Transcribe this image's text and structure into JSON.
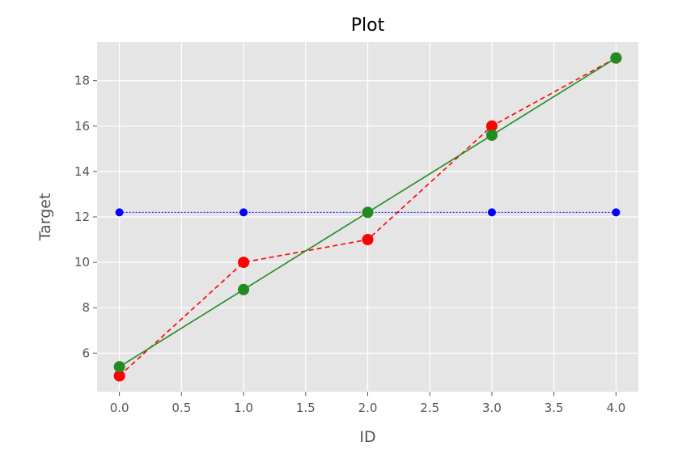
{
  "chart_data": {
    "type": "line",
    "title": "Plot",
    "xlabel": "ID",
    "ylabel": "Target",
    "xlim": [
      -0.18,
      4.18
    ],
    "ylim": [
      4.3,
      19.7
    ],
    "x_ticks": [
      0.0,
      0.5,
      1.0,
      1.5,
      2.0,
      2.5,
      3.0,
      3.5,
      4.0
    ],
    "x_tick_labels": [
      "0.0",
      "0.5",
      "1.0",
      "1.5",
      "2.0",
      "2.5",
      "3.0",
      "3.5",
      "4.0"
    ],
    "y_ticks": [
      6,
      8,
      10,
      12,
      14,
      16,
      18
    ],
    "y_tick_labels": [
      "6",
      "8",
      "10",
      "12",
      "14",
      "16",
      "18"
    ],
    "grid": true,
    "series": [
      {
        "x": [
          0,
          1,
          2,
          3,
          4
        ],
        "y": [
          5.0,
          10.0,
          11.0,
          16.0,
          19.0
        ],
        "color": "#ff0000",
        "line_style": "dashed",
        "marker": "circle",
        "marker_size": 7
      },
      {
        "x": [
          0,
          1,
          2,
          3,
          4
        ],
        "y": [
          12.2,
          12.2,
          12.2,
          12.2,
          12.2
        ],
        "color": "#0000ff",
        "line_style": "dotted",
        "marker": "circle",
        "marker_size": 5
      },
      {
        "x": [
          0,
          1,
          2,
          3,
          4
        ],
        "y": [
          5.4,
          8.8,
          12.2,
          15.6,
          19.0
        ],
        "color": "#228b22",
        "line_style": "solid",
        "marker": "circle",
        "marker_size": 7
      }
    ]
  },
  "colors": {
    "plot_background": "#e5e5e5",
    "grid": "#ffffff",
    "tick_text": "#555555"
  }
}
